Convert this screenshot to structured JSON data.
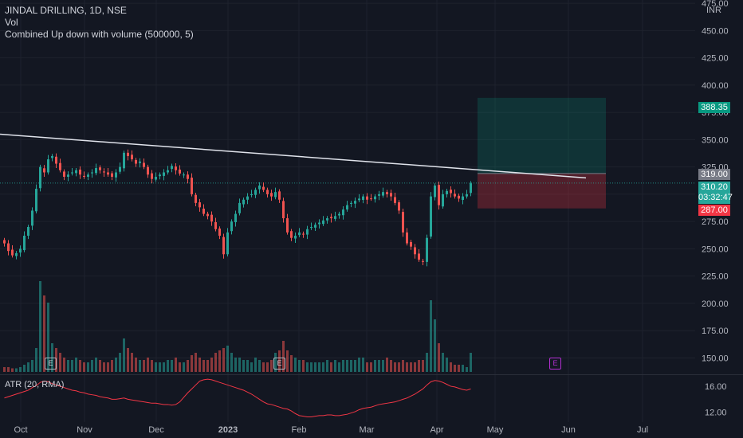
{
  "legend": {
    "title": "JINDAL DRILLING, 1D, NSE",
    "vol": "Vol",
    "indicator": "Combined Up down with volume (500000, 5)"
  },
  "atr_label": "ATR (20, RMA)",
  "currency": "INR",
  "price_tags": {
    "target": "388.35",
    "entry": "319.00",
    "last_price": "310.20",
    "countdown": "03:32:47",
    "stop": "287.00"
  },
  "earnings_badges": [
    "E",
    "E",
    "E"
  ],
  "colors": {
    "background": "#131722",
    "up": "#26a69a",
    "down": "#ef5350",
    "trendline": "#e0e3eb",
    "atr_line": "#f23645",
    "target_zone": "rgba(8,153,129,0.22)",
    "stop_zone": "rgba(242,54,69,0.28)"
  },
  "chart_data": {
    "type": "candlestick",
    "price_axis": {
      "ticks": [
        "475.00",
        "450.00",
        "425.00",
        "400.00",
        "375.00",
        "350.00",
        "325.00",
        "300.00",
        "275.00",
        "250.00",
        "225.00",
        "200.00",
        "175.00",
        "150.00"
      ],
      "range": [
        135,
        478
      ]
    },
    "atr_axis": {
      "ticks": [
        "16.00",
        "12.00"
      ],
      "range": [
        10.5,
        17.6
      ]
    },
    "x_axis": {
      "ticks": [
        "Oct",
        "Nov",
        "Dec",
        "2023",
        "Feb",
        "Mar",
        "Apr",
        "May",
        "Jun",
        "Jul"
      ]
    },
    "trendline": {
      "start": 355,
      "end": 315
    },
    "position": {
      "target": 388.35,
      "entry": 319.0,
      "stop": 287.0
    },
    "last_price": 310.2,
    "closes": [
      255,
      248,
      244,
      246,
      250,
      262,
      270,
      285,
      305,
      325,
      320,
      332,
      335,
      328,
      322,
      316,
      318,
      320,
      322,
      318,
      316,
      318,
      320,
      324,
      322,
      320,
      318,
      316,
      320,
      325,
      338,
      335,
      332,
      328,
      330,
      325,
      318,
      314,
      316,
      318,
      320,
      322,
      326,
      322,
      319,
      318,
      314,
      300,
      292,
      288,
      282,
      280,
      275,
      268,
      262,
      245,
      265,
      275,
      282,
      292,
      295,
      298,
      300,
      304,
      308,
      304,
      300,
      298,
      302,
      295,
      278,
      265,
      260,
      262,
      265,
      263,
      268,
      270,
      272,
      274,
      276,
      278,
      278,
      280,
      282,
      286,
      290,
      292,
      294,
      296,
      298,
      295,
      296,
      298,
      300,
      302,
      300,
      298,
      292,
      285,
      265,
      255,
      252,
      245,
      240,
      238,
      260,
      298,
      308,
      290,
      300,
      303,
      301,
      298,
      296,
      298,
      300,
      310
    ],
    "volumes": [
      0.2,
      0.2,
      0.15,
      0.15,
      0.2,
      0.3,
      0.4,
      0.5,
      1.0,
      3.8,
      3.2,
      2.9,
      1.2,
      1.0,
      0.8,
      0.6,
      0.5,
      0.5,
      0.6,
      0.5,
      0.4,
      0.4,
      0.5,
      0.6,
      0.5,
      0.4,
      0.4,
      0.5,
      0.6,
      0.8,
      1.4,
      1.0,
      0.8,
      0.6,
      0.5,
      0.5,
      0.6,
      0.5,
      0.4,
      0.4,
      0.4,
      0.5,
      0.5,
      0.6,
      0.4,
      0.4,
      0.5,
      0.7,
      0.8,
      0.6,
      0.5,
      0.5,
      0.6,
      0.8,
      0.9,
      1.0,
      1.1,
      0.8,
      0.6,
      0.6,
      0.5,
      0.5,
      0.4,
      0.6,
      0.5,
      0.4,
      0.4,
      0.5,
      0.8,
      0.9,
      1.3,
      0.9,
      0.7,
      0.6,
      0.5,
      0.5,
      0.4,
      0.4,
      0.4,
      0.4,
      0.4,
      0.5,
      0.4,
      0.5,
      0.4,
      0.5,
      0.5,
      0.5,
      0.5,
      0.6,
      0.6,
      0.4,
      0.4,
      0.5,
      0.5,
      0.5,
      0.6,
      0.5,
      0.4,
      0.4,
      0.5,
      0.4,
      0.4,
      0.4,
      0.5,
      0.5,
      0.8,
      3.0,
      2.2,
      1.2,
      0.8,
      0.6,
      0.4,
      0.3,
      0.3,
      0.3,
      0.2,
      0.8
    ],
    "atr": [
      14.2,
      14.4,
      14.6,
      14.8,
      15.0,
      15.2,
      15.4,
      15.8,
      16.1,
      16.6,
      16.8,
      16.7,
      16.4,
      16.2,
      16.0,
      15.8,
      15.6,
      15.4,
      15.3,
      15.1,
      15.0,
      14.8,
      14.7,
      14.6,
      14.4,
      14.3,
      14.2,
      14.0,
      14.0,
      14.1,
      14.2,
      14.0,
      13.9,
      13.8,
      13.7,
      13.6,
      13.5,
      13.4,
      13.4,
      13.3,
      13.2,
      13.2,
      13.1,
      13.2,
      13.6,
      14.3,
      15.0,
      15.6,
      16.2,
      16.8,
      17.0,
      17.1,
      17.0,
      16.8,
      16.6,
      16.4,
      16.2,
      16.0,
      15.8,
      15.6,
      15.4,
      15.1,
      14.8,
      14.4,
      14.0,
      13.6,
      13.3,
      13.2,
      13.0,
      12.8,
      12.6,
      12.5,
      12.2,
      11.8,
      11.5,
      11.4,
      11.3,
      11.3,
      11.4,
      11.5,
      11.5,
      11.6,
      11.6,
      11.5,
      11.5,
      11.6,
      11.7,
      11.9,
      12.1,
      12.4,
      12.6,
      12.7,
      12.8,
      13.0,
      13.2,
      13.3,
      13.4,
      13.5,
      13.6,
      13.8,
      14.0,
      14.2,
      14.5,
      14.8,
      15.2,
      15.6,
      16.2,
      16.7,
      16.9,
      16.8,
      16.6,
      16.3,
      16.0,
      15.9,
      15.7,
      15.5,
      15.4,
      15.6
    ]
  }
}
